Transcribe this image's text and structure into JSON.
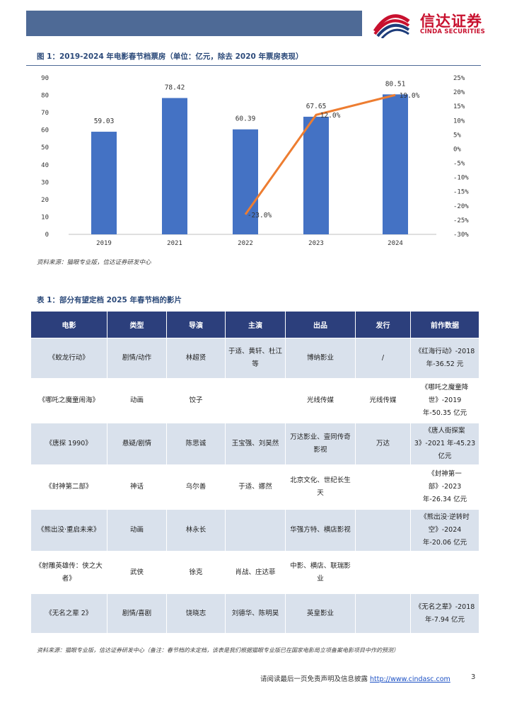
{
  "header": {
    "logo_cn": "信达证券",
    "logo_en": "CINDA SECURITIES"
  },
  "figure": {
    "title": "图 1：2019-2024 年电影春节档票房（单位：亿元，除去 2020 年票房表现）",
    "source": "资料来源：猫眼专业版，信达证券研发中心"
  },
  "chart_data": {
    "type": "bar",
    "categories": [
      "2019",
      "2021",
      "2022",
      "2023",
      "2024"
    ],
    "values": [
      59.03,
      78.42,
      60.39,
      67.65,
      80.51
    ],
    "value_labels": [
      "59.03",
      "78.42",
      "60.39",
      "67.65",
      "80.51"
    ],
    "line": {
      "x": [
        "2022",
        "2023",
        "2024"
      ],
      "values": [
        -23.0,
        12.0,
        19.0
      ],
      "labels": [
        "-23.0%",
        "12.0%",
        "19.0%"
      ]
    },
    "ylim": [
      0,
      90
    ],
    "yticks": [
      "0",
      "10",
      "20",
      "30",
      "40",
      "50",
      "60",
      "70",
      "80",
      "90"
    ],
    "y2lim": [
      -30,
      25
    ],
    "y2ticks": [
      "-30%",
      "-25%",
      "-20%",
      "-15%",
      "-10%",
      "-5%",
      "0%",
      "5%",
      "10%",
      "15%",
      "20%",
      "25%"
    ],
    "bar_color": "#4472c4",
    "line_color": "#ed7d31",
    "grid": false
  },
  "table": {
    "title": "表 1：部分有望定档 2025 年春节档的影片",
    "headers": [
      "电影",
      "类型",
      "导演",
      "主演",
      "出品",
      "发行",
      "前作数据"
    ],
    "rows": [
      [
        "《蛟龙行动》",
        "剧情/动作",
        "林超贤",
        "于适、黄轩、杜江等",
        "博纳影业",
        "/",
        "《红海行动》-2018 年-36.52 元"
      ],
      [
        "《哪吒之魔童闹海》",
        "动画",
        "饺子",
        "",
        "光线传媒",
        "光线传媒",
        "《哪吒之魔童降世》-2019 年-50.35 亿元"
      ],
      [
        "《唐探 1990》",
        "悬疑/剧情",
        "陈思诚",
        "王宝强、刘昊然",
        "万达影业、壹同传奇影视",
        "万达",
        "《唐人街探案 3》-2021 年-45.23 亿元"
      ],
      [
        "《封神第二部》",
        "神话",
        "乌尔善",
        "于适、娜然",
        "北京文化、世纪长生天",
        "",
        "《封神第一部》-2023 年-26.34 亿元"
      ],
      [
        "《熊出没·重启未来》",
        "动画",
        "林永长",
        "",
        "华强方特、横店影视",
        "",
        "《熊出没·逆转时空》-2024 年-20.06 亿元"
      ],
      [
        "《射雕英雄传：侠之大者》",
        "武侠",
        "徐克",
        "肖战、庄达菲",
        "中影、横店、联瑞影业",
        "",
        ""
      ],
      [
        "《无名之辈 2》",
        "剧情/喜剧",
        "饶晓志",
        "刘德华、陈明昊",
        "英皇影业",
        "",
        "《无名之辈》-2018 年-7.94 亿元"
      ]
    ],
    "source": "资料来源：猫眼专业版，信达证券研发中心（备注：春节档的未定档，该表是我们根据猫眼专业版已在国家电影局立项备案电影项目中作的预测）"
  },
  "footer": {
    "text": "请阅读最后一页免责声明及信息披露 ",
    "url": "http://www.cindasc.com",
    "page": "3"
  }
}
